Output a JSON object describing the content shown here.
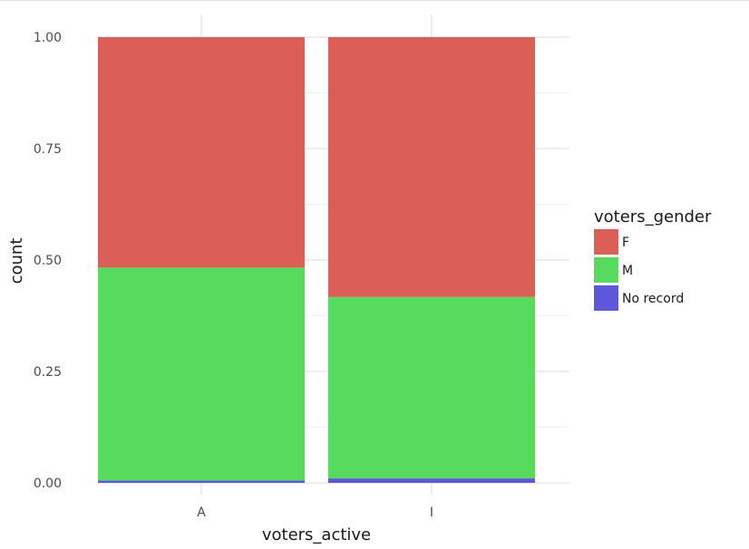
{
  "chart_data": {
    "type": "bar",
    "stacked": true,
    "position": "fill",
    "xlabel": "voters_active",
    "ylabel": "count",
    "categories": [
      "A",
      "I"
    ],
    "ylim": [
      0,
      1
    ],
    "yticks": [
      "0.00",
      "0.25",
      "0.50",
      "0.75",
      "1.00"
    ],
    "grid": true,
    "legend": {
      "title": "voters_gender",
      "placement": "right"
    },
    "series": [
      {
        "name": "F",
        "color": "#db5f57",
        "values": [
          0.517,
          0.583
        ]
      },
      {
        "name": "M",
        "color": "#57db5f",
        "values": [
          0.478,
          0.407
        ]
      },
      {
        "name": "No record",
        "color": "#5f57db",
        "values": [
          0.005,
          0.01
        ]
      }
    ]
  }
}
